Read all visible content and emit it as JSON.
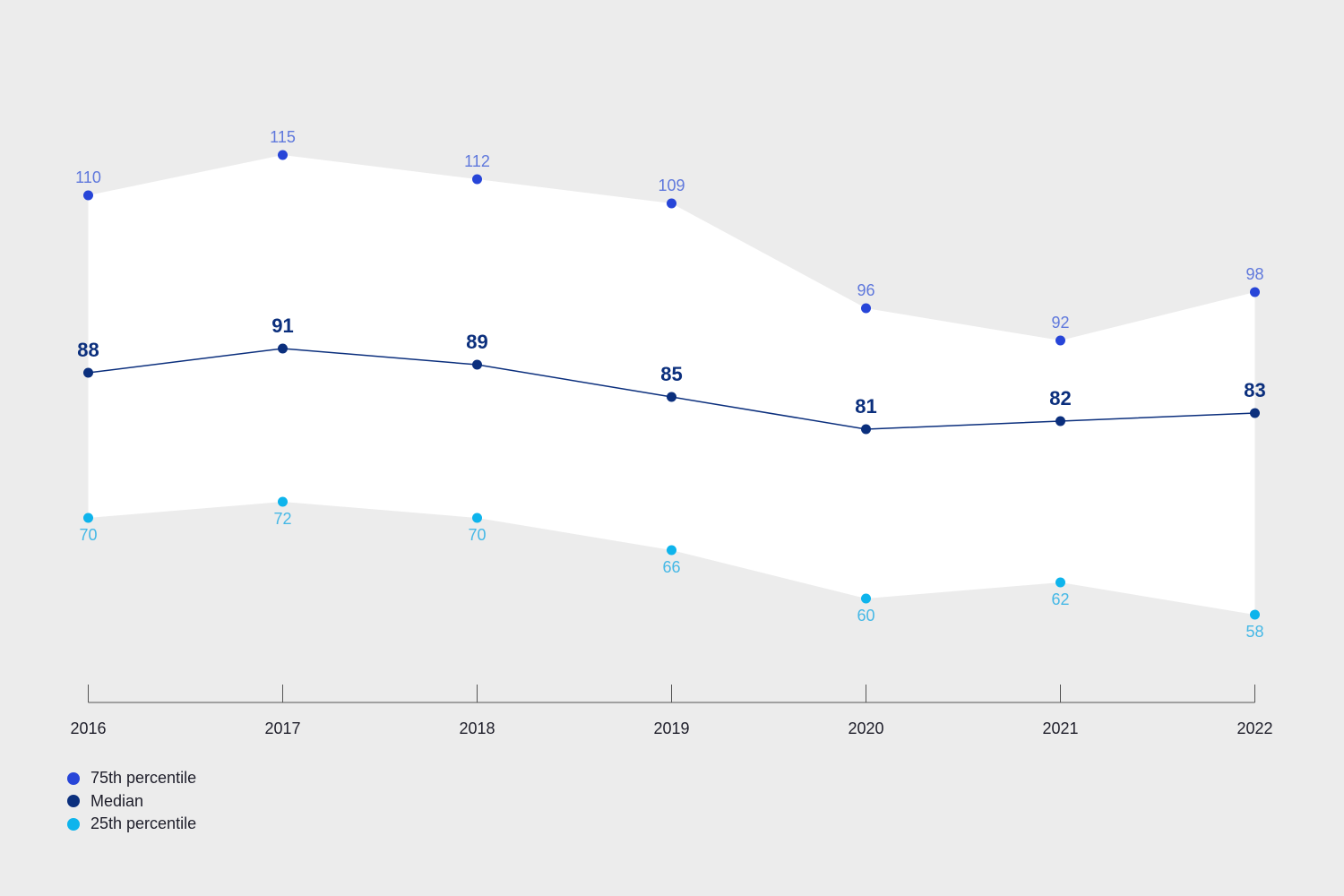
{
  "chart_data": {
    "type": "area",
    "categories": [
      "2016",
      "2017",
      "2018",
      "2019",
      "2020",
      "2021",
      "2022"
    ],
    "series": [
      {
        "name": "75th percentile",
        "values": [
          110,
          115,
          112,
          109,
          96,
          92,
          98
        ]
      },
      {
        "name": "Median",
        "values": [
          88,
          91,
          89,
          85,
          81,
          82,
          83
        ]
      },
      {
        "name": "25th percentile",
        "values": [
          70,
          72,
          70,
          66,
          60,
          62,
          58
        ]
      }
    ],
    "title": "",
    "xlabel": "",
    "ylabel": "",
    "ylim": [
      45,
      125
    ],
    "grid": false,
    "legend": "bottom-left",
    "colors": {
      "p75": "#2745d8",
      "median": "#0b2f7d",
      "p25": "#0eb4ec",
      "p75_label": "#5f78dc",
      "p25_label": "#45b8e6",
      "band": "#ffffff",
      "background": "#ececec",
      "axis": "#555555"
    }
  }
}
